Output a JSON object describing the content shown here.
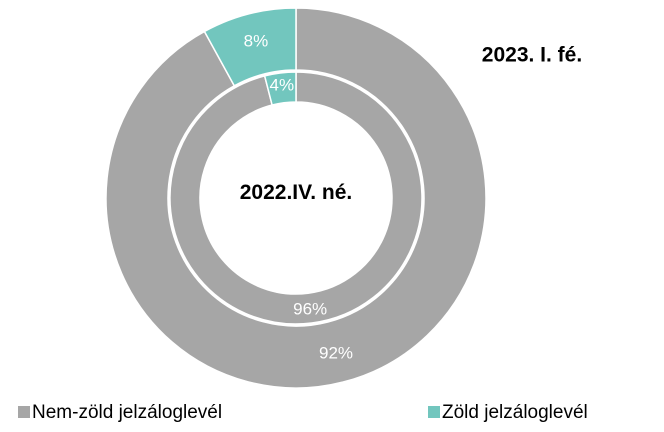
{
  "chart_data": {
    "type": "donut",
    "categories": [
      "Nem-zöld jelzáloglevél",
      "Zöld jelzáloglevél"
    ],
    "colors": [
      "#a6a6a6",
      "#72c6be"
    ],
    "series": [
      {
        "name": "2023. I. fé.",
        "values": [
          92,
          8
        ],
        "value_labels": [
          "92%",
          "8%"
        ]
      },
      {
        "name": "2022.IV. né.",
        "values": [
          96,
          4
        ],
        "value_labels": [
          "96%",
          "4%"
        ]
      }
    ]
  }
}
